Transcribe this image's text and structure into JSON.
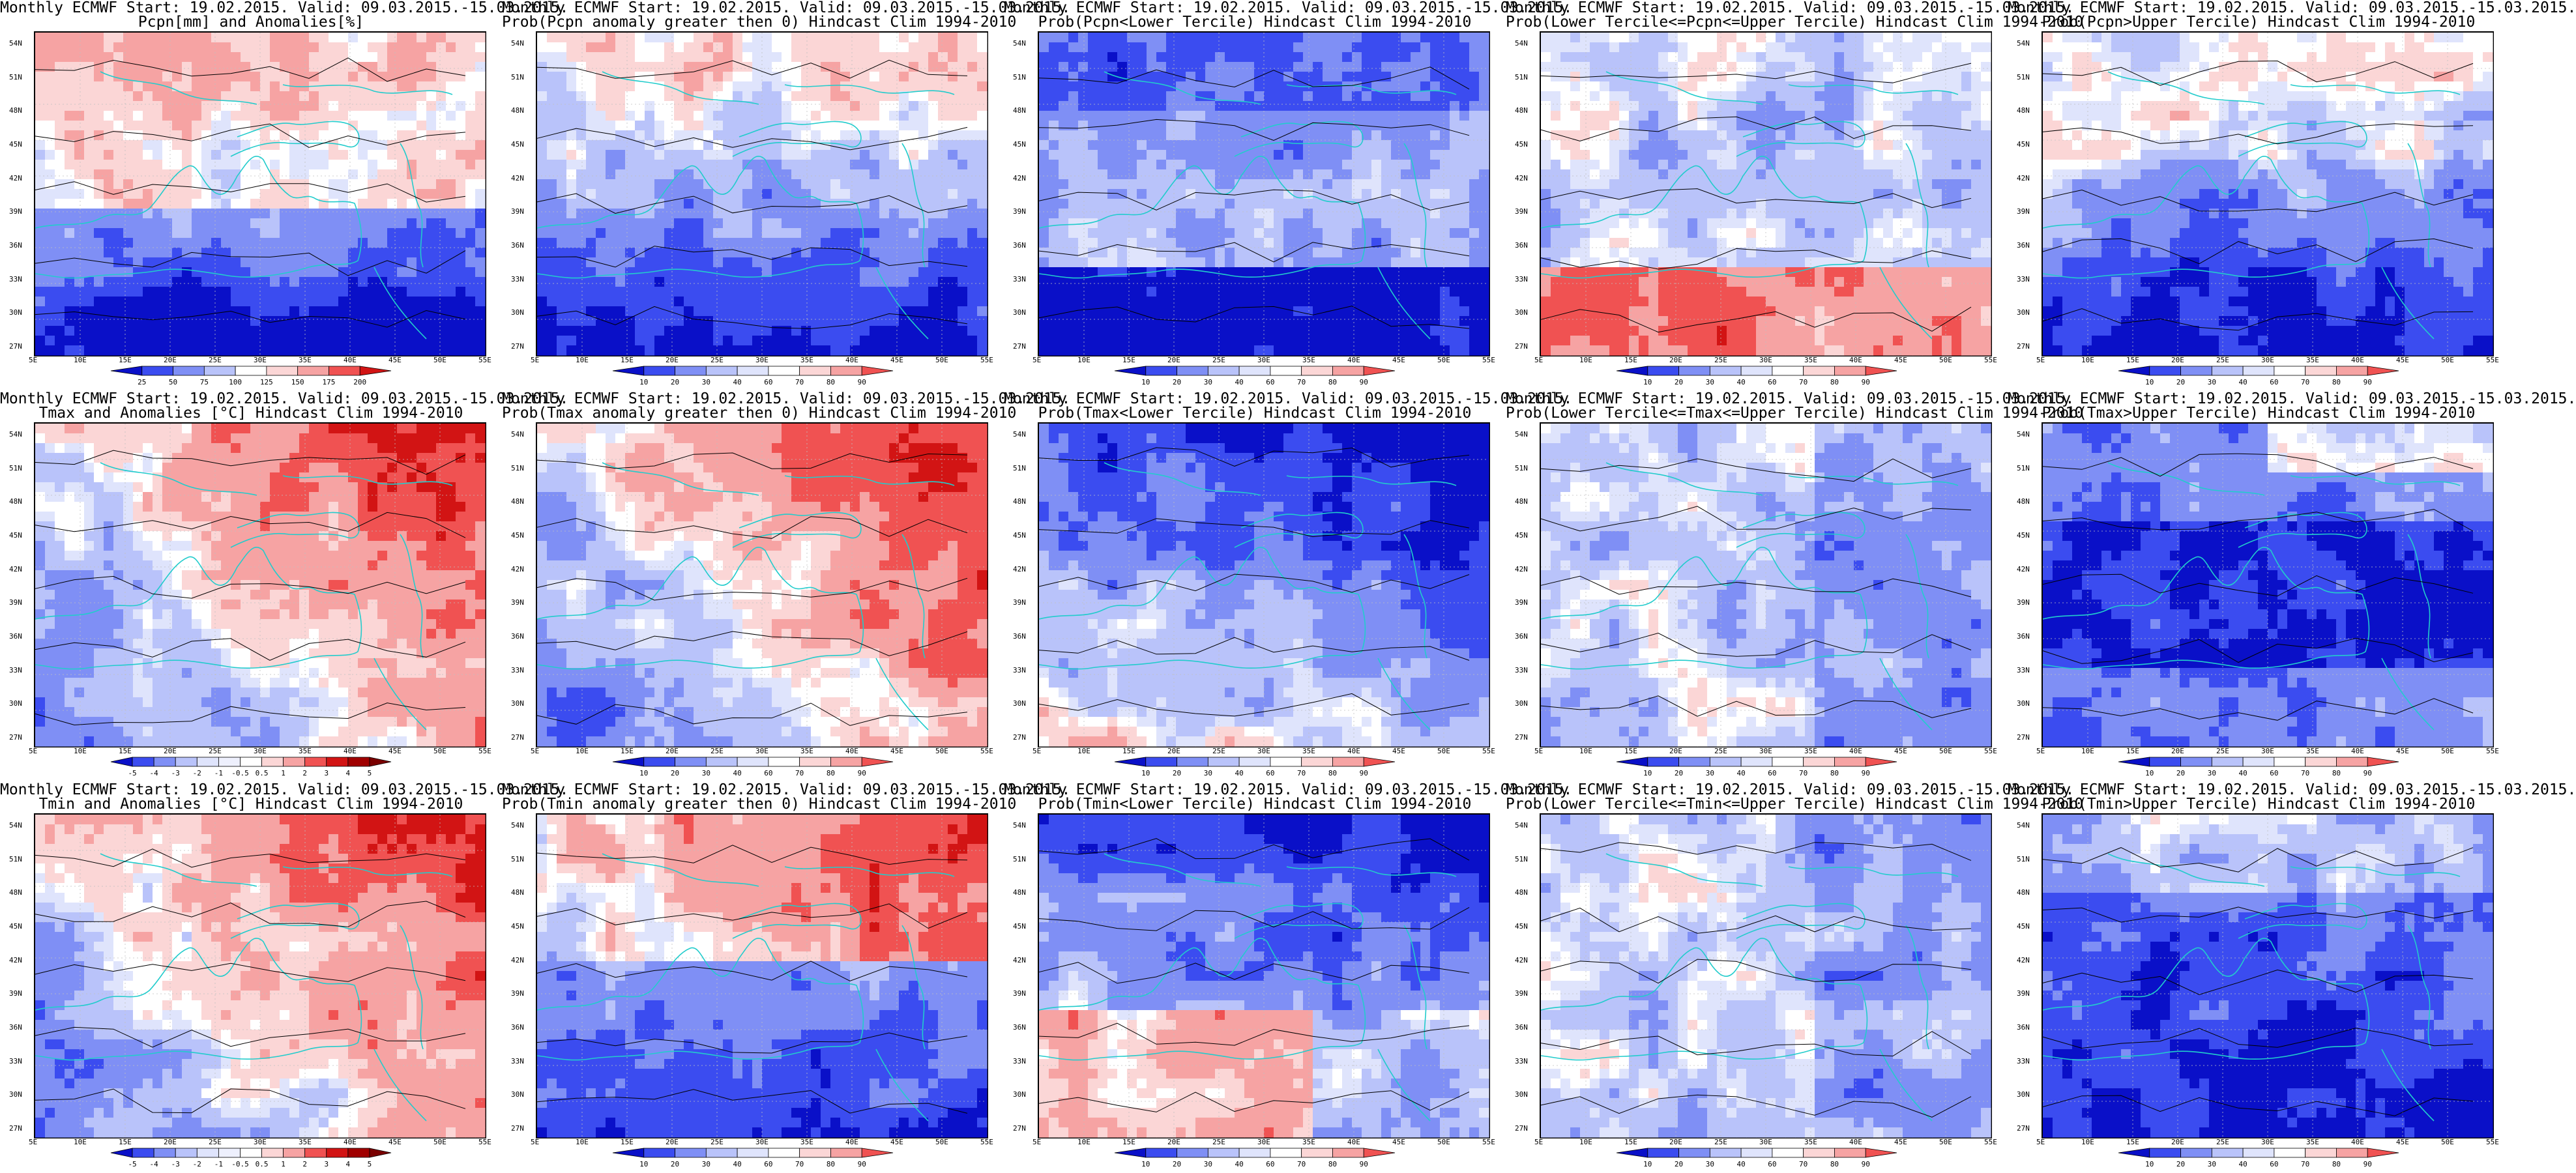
{
  "colors": {
    "deep_blue": "#0a10c8",
    "blue": "#3b4cf0",
    "mid_blue": "#7f8ff5",
    "light_blue": "#b9c3fa",
    "pale_blue": "#dfe4fc",
    "white": "#ffffff",
    "pale_red": "#fbd6d6",
    "light_red": "#f6a3a3",
    "red": "#f05252",
    "deep_red": "#d21414",
    "dark_red": "#a00000",
    "coast": "#22cccc",
    "contour": "#000000"
  },
  "lat_labels": [
    "54N",
    "51N",
    "48N",
    "45N",
    "42N",
    "39N",
    "36N",
    "33N",
    "30N",
    "27N"
  ],
  "lon_labels": [
    "5E",
    "10E",
    "15E",
    "20E",
    "25E",
    "30E",
    "35E",
    "40E",
    "45E",
    "50E",
    "55E"
  ],
  "scales": {
    "prob": [
      "10",
      "20",
      "30",
      "40",
      "60",
      "70",
      "80",
      "90"
    ],
    "anom_t": [
      "-5",
      "-4",
      "-3",
      "-2",
      "-1",
      "-0.5",
      "0.5",
      "1",
      "2",
      "3",
      "4",
      "5"
    ],
    "pcpn": [
      "25",
      "50",
      "75",
      "100",
      "125",
      "150",
      "175",
      "200"
    ]
  },
  "panels": [
    {
      "line1": "Monthly ECMWF Start: 19.02.2015. Valid: 09.03.2015.-15.03.2015.",
      "line2": "Pcpn[mm] and Anomalies[%]",
      "scale": "pcpn",
      "style": "pcpn_anom"
    },
    {
      "line1": "Monthly ECMWF Start: 19.02.2015. Valid: 09.03.2015.-15.03.2015.",
      "line2": "Prob(Pcpn anomaly greater then 0) Hindcast Clim 1994-2010",
      "scale": "prob",
      "style": "blue_south"
    },
    {
      "line1": "Monthly ECMWF Start: 19.02.2015. Valid: 09.03.2015.-15.03.2015.",
      "line2": "Prob(Pcpn<Lower Tercile) Hindcast Clim 1994-2010",
      "scale": "prob",
      "style": "deep_blue_all"
    },
    {
      "line1": "Monthly ECMWF Start: 19.02.2015. Valid: 09.03.2015.-15.03.2015.",
      "line2": "Prob(Lower Tercile<=Pcpn<=Upper Tercile) Hindcast Clim 1994-2010",
      "scale": "prob",
      "style": "red_south"
    },
    {
      "line1": "Monthly ECMWF Start: 19.02.2015. Valid: 09.03.2015.-15.03.2015.",
      "line2": "Prob(Pcpn>Upper Tercile) Hindcast Clim 1994-2010",
      "scale": "prob",
      "style": "blue_south"
    },
    {
      "line1": "Monthly ECMWF Start: 19.02.2015. Valid: 09.03.2015.-15.03.2015.",
      "line2": "Tmax and Anomalies [°C] Hindcast Clim 1994-2010",
      "scale": "anom_t",
      "style": "red_north"
    },
    {
      "line1": "Monthly ECMWF Start: 19.02.2015. Valid: 09.03.2015.-15.03.2015.",
      "line2": "Prob(Tmax anomaly greater then 0) Hindcast Clim 1994-2010",
      "scale": "prob",
      "style": "red_north"
    },
    {
      "line1": "Monthly ECMWF Start: 19.02.2015. Valid: 09.03.2015.-15.03.2015.",
      "line2": "Prob(Tmax<Lower Tercile) Hindcast Clim 1994-2010",
      "scale": "prob",
      "style": "blue_north"
    },
    {
      "line1": "Monthly ECMWF Start: 19.02.2015. Valid: 09.03.2015.-15.03.2015.",
      "line2": "Prob(Lower Tercile<=Tmax<=Upper Tercile) Hindcast Clim 1994-2010",
      "scale": "prob",
      "style": "mixed_blue"
    },
    {
      "line1": "Monthly ECMWF Start: 19.02.2015. Valid: 09.03.2015.-15.03.2015.",
      "line2": "Prob(Tmax>Upper Tercile) Hindcast Clim 1994-2010",
      "scale": "prob",
      "style": "deep_blue_mid"
    },
    {
      "line1": "Monthly ECMWF Start: 19.02.2015. Valid: 09.03.2015.-15.03.2015.",
      "line2": "Tmin and Anomalies [°C] Hindcast Clim 1994-2010",
      "scale": "anom_t",
      "style": "red_north"
    },
    {
      "line1": "Monthly ECMWF Start: 19.02.2015. Valid: 09.03.2015.-15.03.2015.",
      "line2": "Prob(Tmin anomaly greater then 0) Hindcast Clim 1994-2010",
      "scale": "prob",
      "style": "red_north_blue_south"
    },
    {
      "line1": "Monthly ECMWF Start: 19.02.2015. Valid: 09.03.2015.-15.03.2015.",
      "line2": "Prob(Tmin<Lower Tercile) Hindcast Clim 1994-2010",
      "scale": "prob",
      "style": "blue_north_red_south"
    },
    {
      "line1": "Monthly ECMWF Start: 19.02.2015. Valid: 09.03.2015.-15.03.2015.",
      "line2": "Prob(Lower Tercile<=Tmin<=Upper Tercile) Hindcast Clim 1994-2010",
      "scale": "prob",
      "style": "mixed_blue"
    },
    {
      "line1": "Monthly ECMWF Start: 19.02.2015. Valid: 09.03.2015.-15.03.2015.",
      "line2": "Prob(Tmin>Upper Tercile) Hindcast Clim 1994-2010",
      "scale": "prob",
      "style": "deep_blue_south"
    }
  ]
}
